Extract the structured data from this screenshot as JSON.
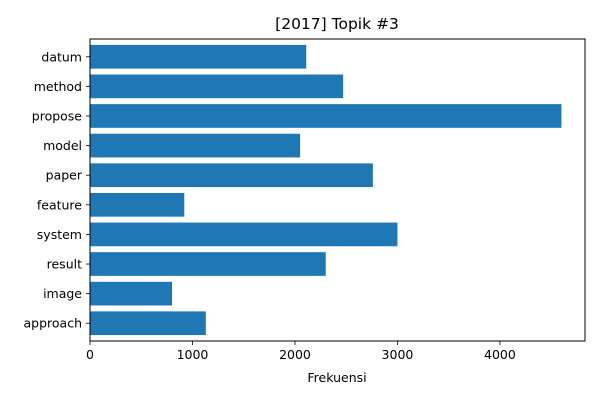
{
  "chart_data": {
    "type": "bar",
    "orientation": "horizontal",
    "title": "[2017] Topik #3",
    "xlabel": "Frekuensi",
    "ylabel": "",
    "categories": [
      "datum",
      "method",
      "propose",
      "model",
      "paper",
      "feature",
      "system",
      "result",
      "image",
      "approach"
    ],
    "values": [
      2110,
      2470,
      4600,
      2050,
      2760,
      920,
      3000,
      2300,
      800,
      1130
    ],
    "xlim": [
      0,
      4830
    ],
    "xticks": [
      0,
      1000,
      2000,
      3000,
      4000
    ],
    "xtick_labels": [
      "0",
      "1000",
      "2000",
      "3000",
      "4000"
    ],
    "grid": false,
    "bar_color": "#1f77b4"
  }
}
